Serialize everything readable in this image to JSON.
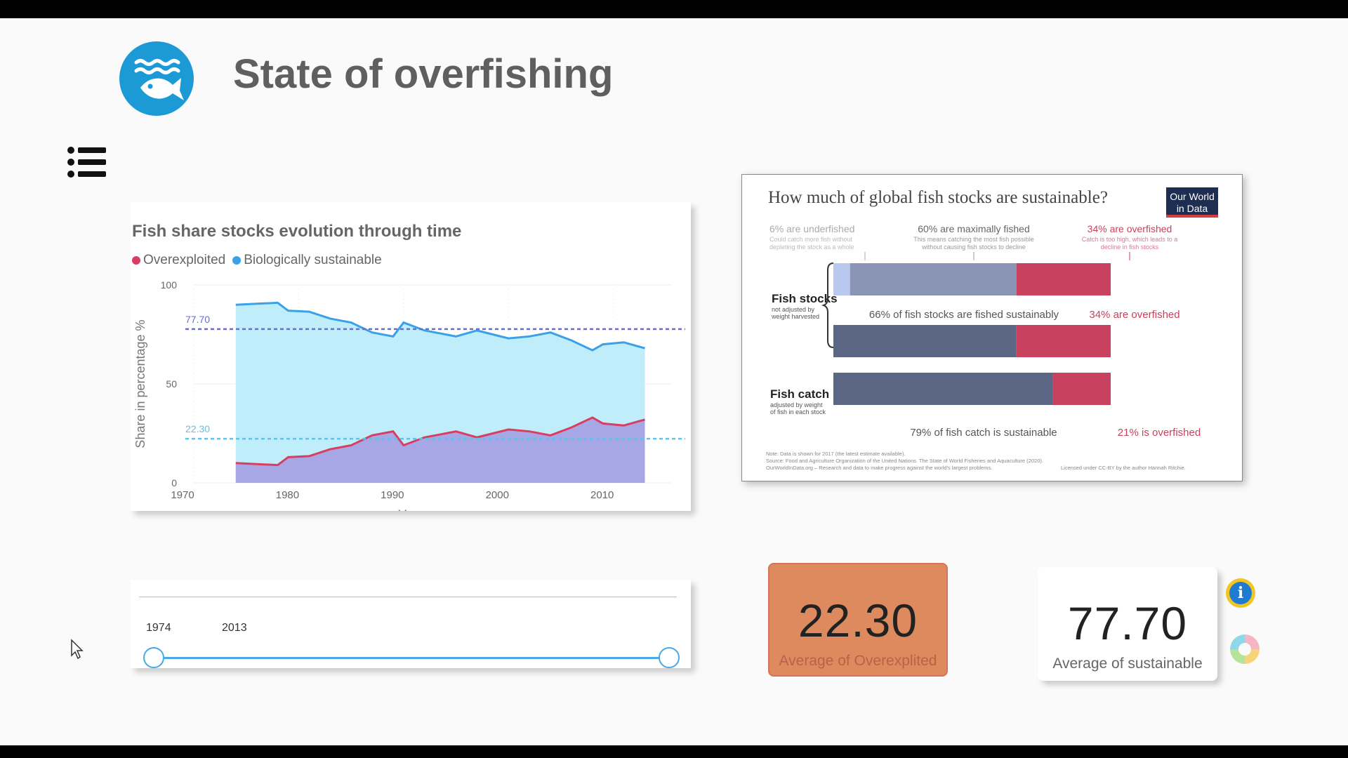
{
  "header": {
    "title": "State of overfishing",
    "logo_icon": "fish-wave-icon",
    "menu_icon": "list-icon"
  },
  "chart": {
    "title": "Fish share stocks evolution through time",
    "legend": [
      {
        "name": "Overexploited",
        "color": "#d93d62"
      },
      {
        "name": "Biologically sustainable",
        "color": "#3aa0e8"
      }
    ]
  },
  "chart_data": {
    "type": "area",
    "xlabel": "Years",
    "ylabel": "Share in percentage %",
    "xlim": [
      1970,
      2013
    ],
    "ylim": [
      0,
      100
    ],
    "x_ticks": [
      "1970",
      "1980",
      "1990",
      "2000",
      "2010"
    ],
    "y_ticks": [
      "0",
      "50",
      "100"
    ],
    "x": [
      1974,
      1976,
      1978,
      1979,
      1981,
      1983,
      1985,
      1987,
      1989,
      1990,
      1992,
      1995,
      1997,
      2000,
      2002,
      2004,
      2006,
      2008,
      2009,
      2011,
      2013
    ],
    "series": [
      {
        "name": "Overexploited",
        "color": "#d93d62",
        "values": [
          10,
          9.5,
          9,
          13,
          13.5,
          17,
          19,
          24,
          26,
          19,
          23,
          26,
          23,
          27,
          26,
          24,
          28,
          33,
          30,
          29,
          32
        ]
      },
      {
        "name": "Biologically sustainable",
        "color": "#3aa0e8",
        "values": [
          90,
          90.5,
          91,
          87,
          86.5,
          83,
          81,
          76,
          74,
          81,
          77,
          74,
          77,
          73,
          74,
          76,
          72,
          67,
          70,
          71,
          68
        ]
      }
    ],
    "reference_lines": [
      {
        "label": "77.70",
        "value": 77.7,
        "color": "#6b6bd6"
      },
      {
        "label": "22.30",
        "value": 22.3,
        "color": "#5fc2ea"
      }
    ]
  },
  "slider": {
    "start": "1974",
    "end": "2013"
  },
  "infographic": {
    "title": "How much of global fish stocks are sustainable?",
    "badge_line1": "Our World",
    "badge_line2": "in Data",
    "ann_under": "6% are underfished",
    "ann_under_sub1": "Could catch more fish without",
    "ann_under_sub2": "depleting the stock as a whole",
    "ann_max": "60% are maximally fished",
    "ann_max_sub1": "This means catching the most fish possible",
    "ann_max_sub2": "without causing fish stocks to decline",
    "ann_over": "34% are overfished",
    "ann_over_sub1": "Catch is too high, which leads to a",
    "ann_over_sub2": "decline in fish stocks",
    "stocks_label": "Fish stocks",
    "stocks_sub1": "not adjusted by",
    "stocks_sub2": "weight harvested",
    "stocks_caption_left": "66% of fish stocks are fished sustainably",
    "stocks_caption_right": "34% are overfished",
    "catch_label": "Fish catch",
    "catch_sub1": "adjusted by weight",
    "catch_sub2": "of fish in each stock",
    "catch_caption_left": "79% of fish catch is sustainable",
    "catch_caption_right": "21% is overfished",
    "note1": "Note: Data is shown for 2017 (the latest estimate available).",
    "note2": "Source: Food and Agriculture Organization of the United Nations. The State of World Fisheries and Aquaculture (2020).",
    "note3": "OurWorldInData.org – Research and data to make progress against the world's largest problems.",
    "note4": "Licensed under CC-BY by the author Hannah Ritchie.",
    "bar1": {
      "under": 6,
      "max": 60,
      "over": 34
    },
    "bar2": {
      "sustainable": 66,
      "over": 34
    },
    "bar3": {
      "sustainable": 79,
      "over": 21
    },
    "colors": {
      "under": "#b9c8ee",
      "max": "#8a95b5",
      "sustainable": "#5b6785",
      "over": "#c8415f",
      "badge": "#1d2e52",
      "badge_line": "#d33d46"
    }
  },
  "kpis": {
    "overexploited": {
      "value": "22.30",
      "label": "Average of Overexplited",
      "color": "#dd8a5e",
      "label_color": "#b7634a"
    },
    "sustainable": {
      "value": "77.70",
      "label": "Average of sustainable",
      "label_color": "#666666"
    }
  },
  "side_icons": {
    "info": "info-icon",
    "chart": "donut-chart-icon"
  }
}
